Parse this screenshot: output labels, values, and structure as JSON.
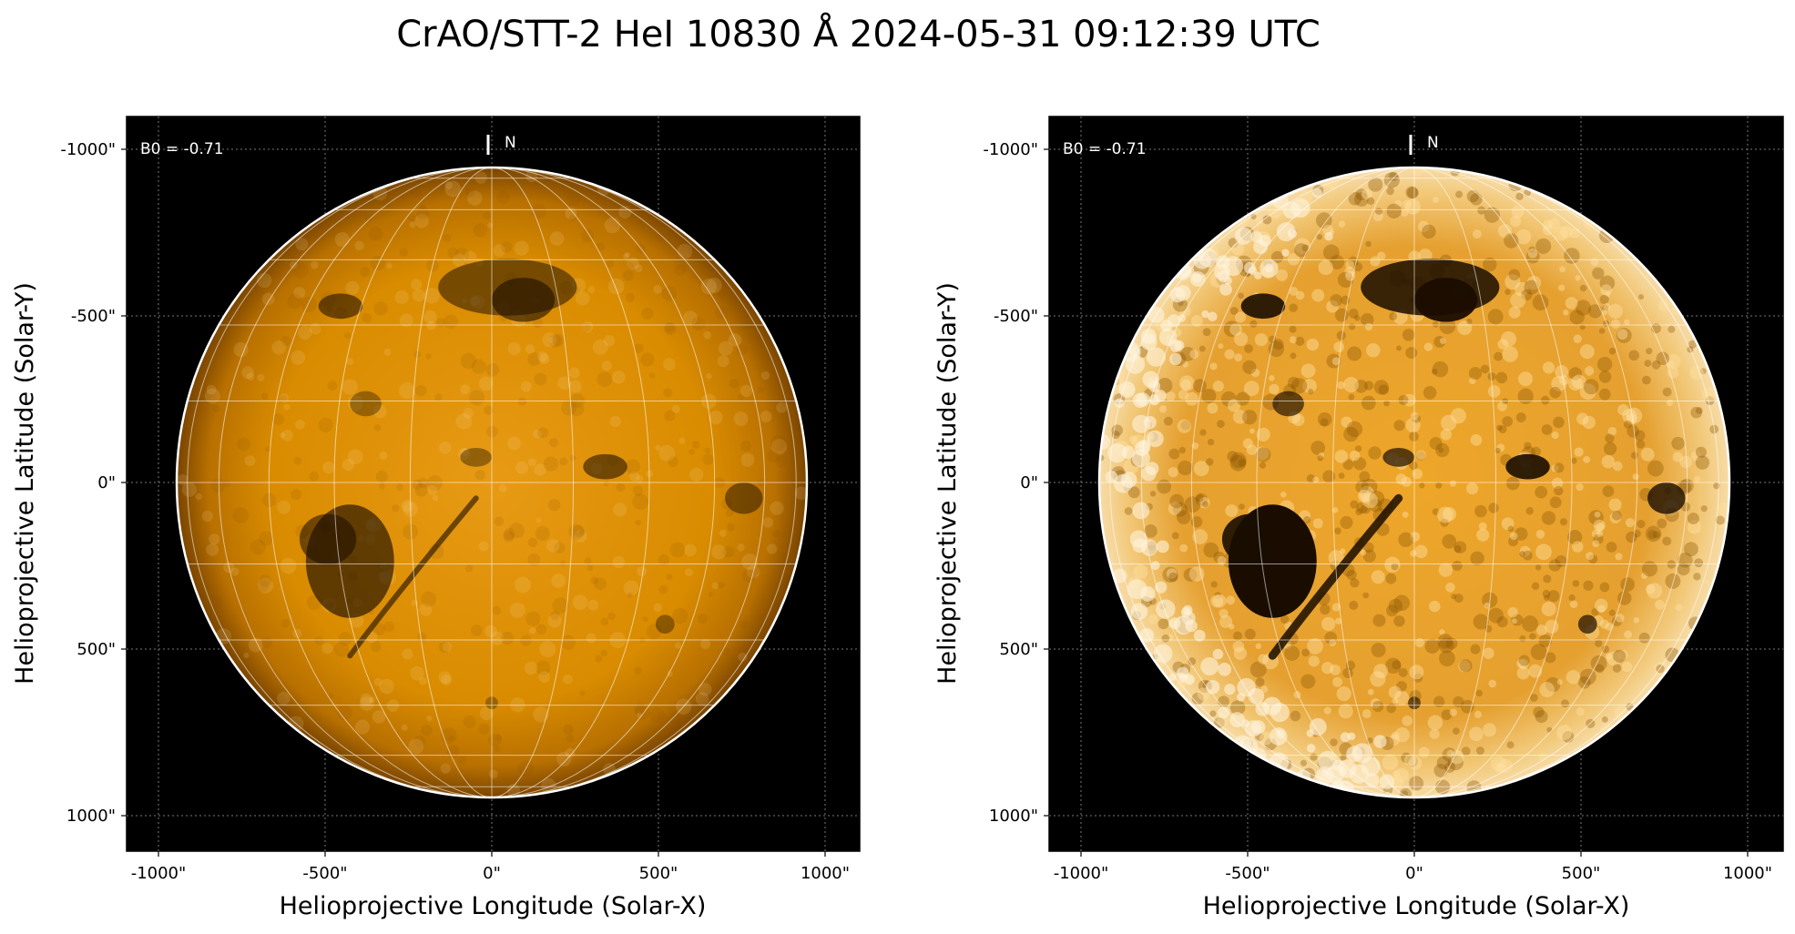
{
  "title": "CrAO/STT-2 HeI 10830 Å 2024-05-31 09:12:39 UTC",
  "colors": {
    "background": "#000000",
    "disk_base": "#d98c00",
    "grid": "#ffffff",
    "limb": "#ffffff"
  },
  "panels": [
    {
      "annotation": "B0 = -0.71",
      "north_label": "N",
      "xlabel": "Helioprojective Longitude (Solar-X)",
      "ylabel": "Helioprojective Latitude (Solar-Y)",
      "xticks": [
        "-1000\"",
        "-500\"",
        "0\"",
        "500\"",
        "1000\""
      ],
      "yticks": [
        "1000\"",
        "500\"",
        "0\"",
        "-500\"",
        "-1000\""
      ],
      "contrast": "normal"
    },
    {
      "annotation": "B0 = -0.71",
      "north_label": "N",
      "xlabel": "Helioprojective Longitude (Solar-X)",
      "ylabel": "Helioprojective Latitude (Solar-Y)",
      "xticks": [
        "-1000\"",
        "-500\"",
        "0\"",
        "500\"",
        "1000\""
      ],
      "yticks": [
        "1000\"",
        "500\"",
        "0\"",
        "-500\"",
        "-1000\""
      ],
      "contrast": "enhanced"
    }
  ]
}
